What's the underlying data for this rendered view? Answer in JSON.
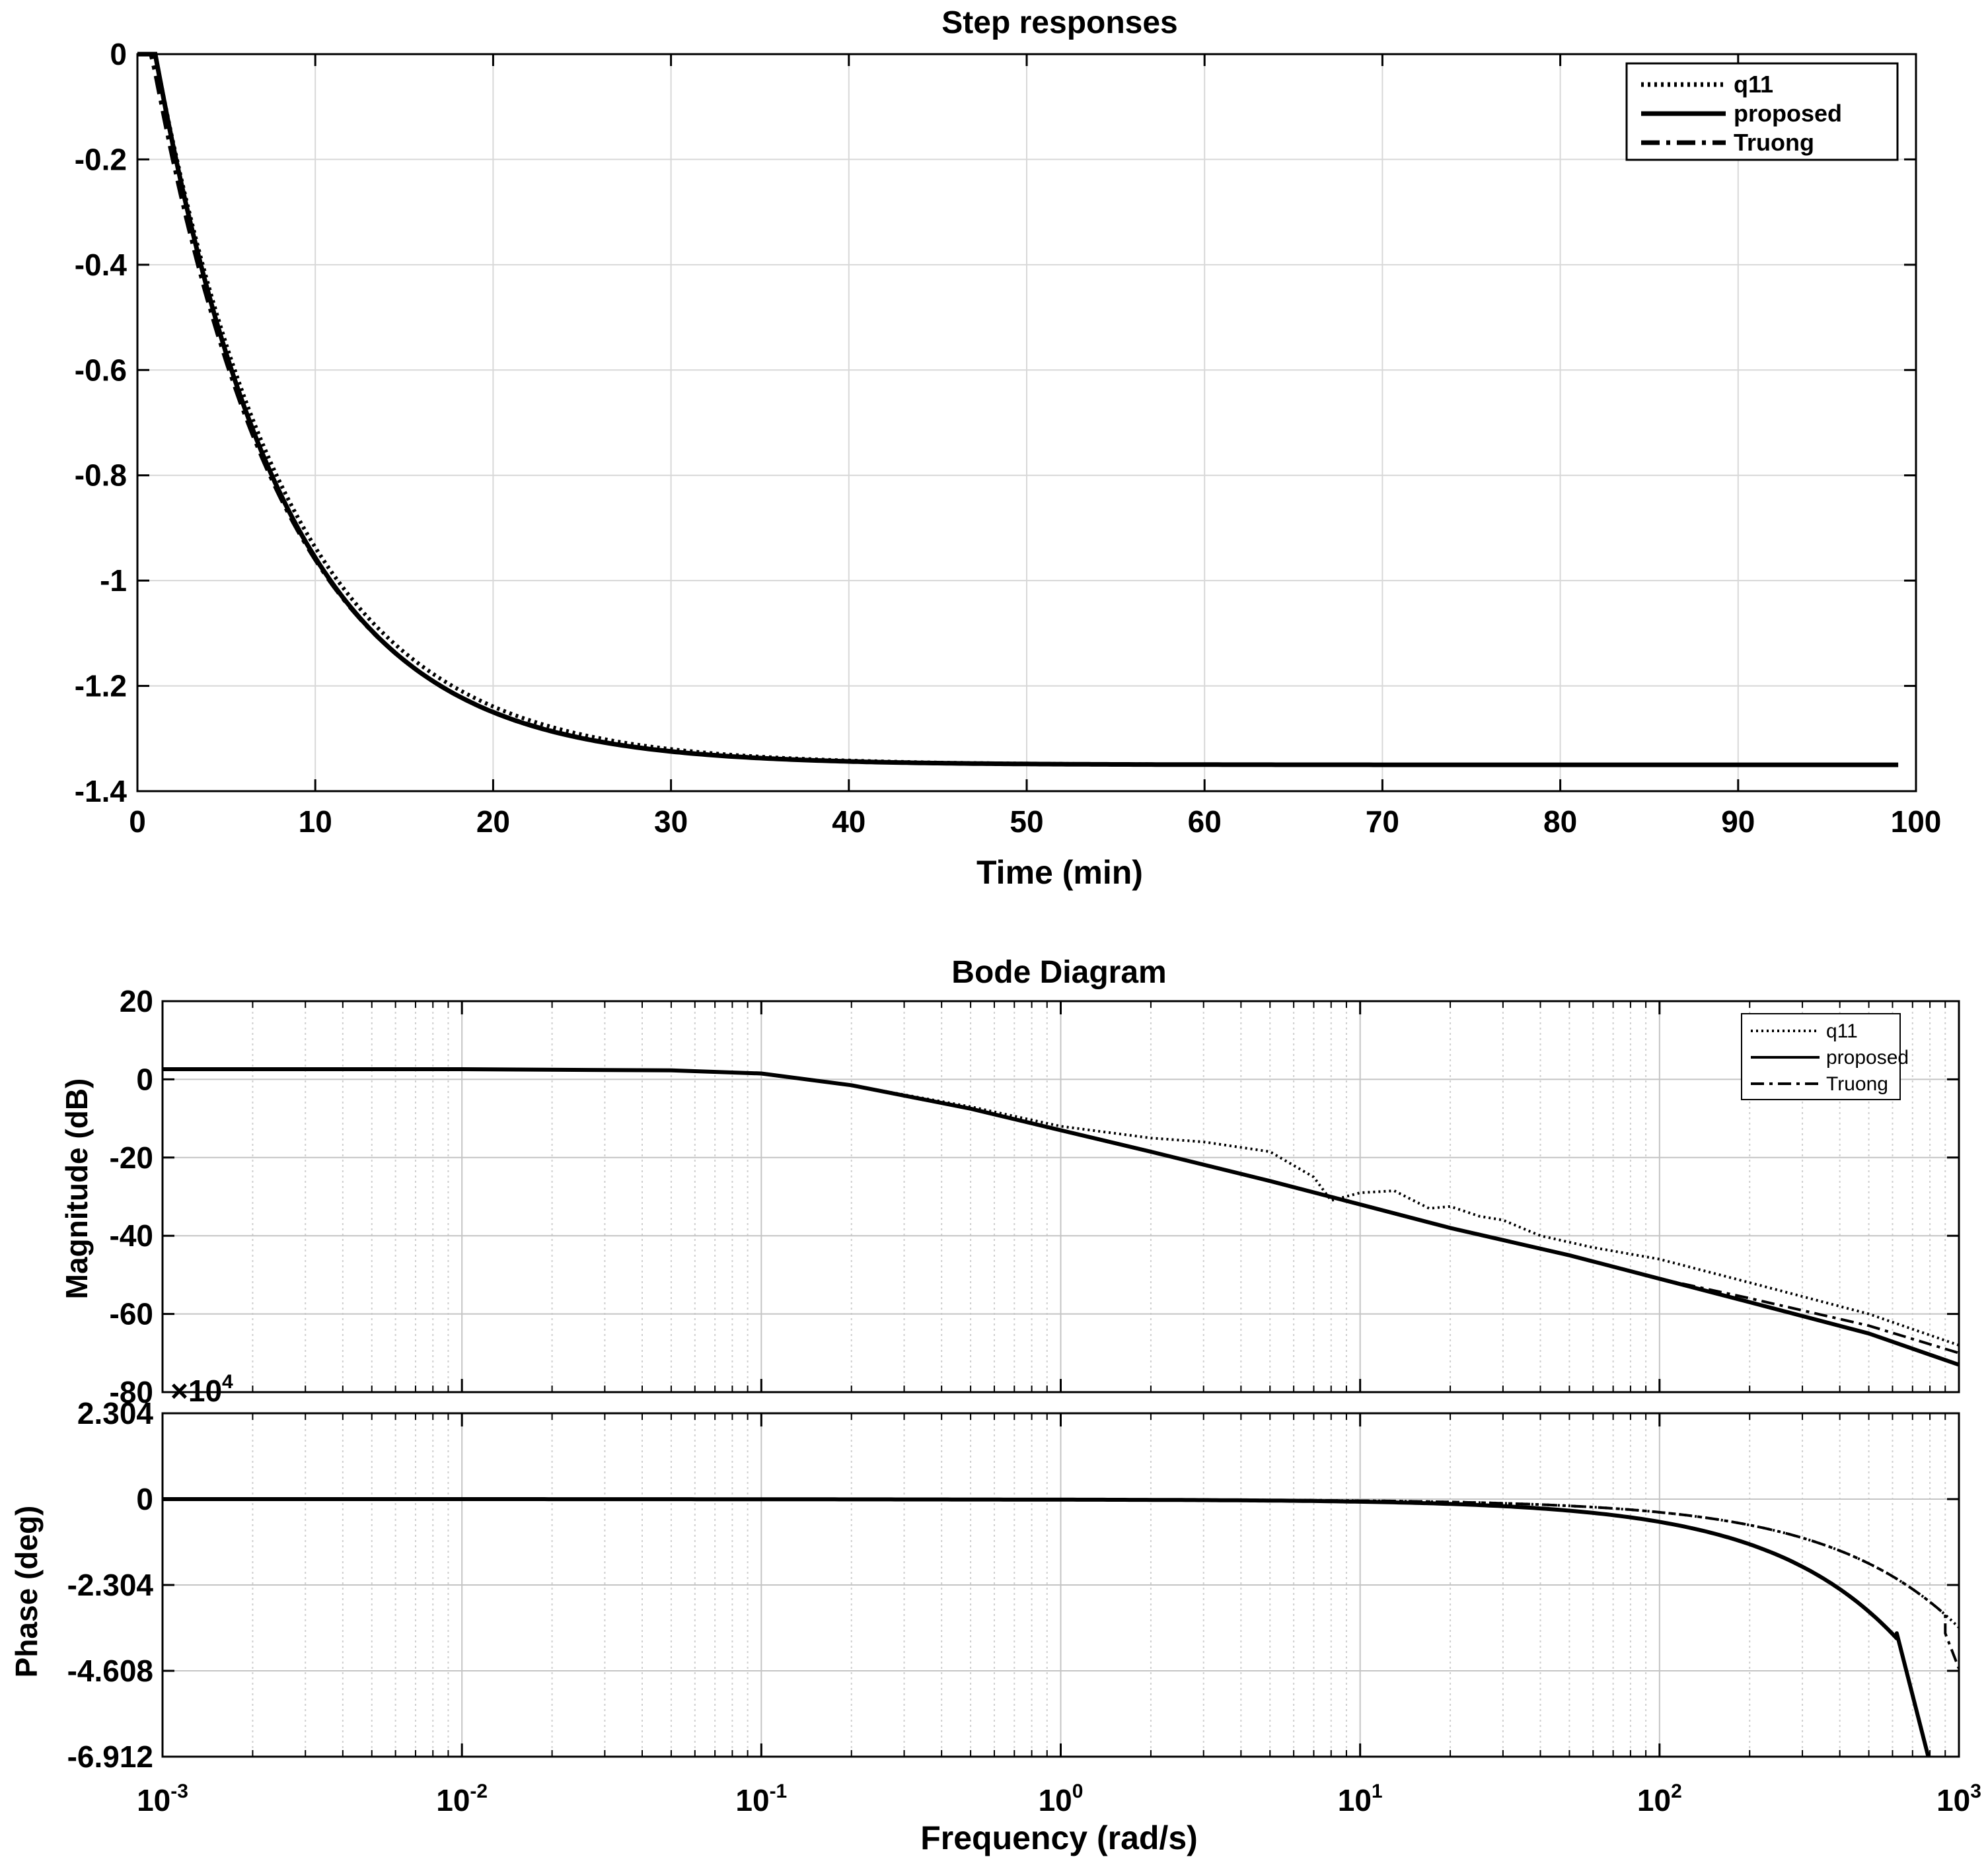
{
  "chart_data": [
    {
      "type": "line",
      "title": "Step responses",
      "xlabel": "Time (min)",
      "ylabel": "",
      "xlim": [
        0,
        100
      ],
      "ylim": [
        -1.4,
        0
      ],
      "xticks": [
        0,
        10,
        20,
        30,
        40,
        50,
        60,
        70,
        80,
        90,
        100
      ],
      "xtick_labels": [
        "0",
        "10",
        "20",
        "30",
        "40",
        "50",
        "60",
        "70",
        "80",
        "90",
        "100"
      ],
      "yticks": [
        0,
        -0.2,
        -0.4,
        -0.6,
        -0.8,
        -1,
        -1.2,
        -1.4
      ],
      "ytick_labels": [
        "0",
        "-0.2",
        "-0.4",
        "-0.6",
        "-0.8",
        "-1",
        "-1.2",
        "-1.4"
      ],
      "grid": true,
      "legend_position": "top-right",
      "legend": [
        "q11",
        "proposed",
        "Truong"
      ],
      "series": [
        {
          "name": "q11",
          "style": "dotted",
          "dead_time": 1,
          "gain": -1.35,
          "tau": 7.6,
          "x_end": 99
        },
        {
          "name": "proposed",
          "style": "solid",
          "dead_time": 1,
          "gain": -1.35,
          "tau": 7.3,
          "x_end": 99
        },
        {
          "name": "Truong",
          "style": "dashdot",
          "dead_time": 0.8,
          "gain": -1.35,
          "tau": 7.4,
          "x_end": 99
        }
      ]
    },
    {
      "type": "line",
      "title": "Bode Diagram",
      "panel": "magnitude",
      "xlabel": "",
      "ylabel": "Magnitude (dB)",
      "xscale": "log",
      "xlim": [
        0.001,
        1000
      ],
      "ylim": [
        -80,
        20
      ],
      "yticks": [
        20,
        0,
        -20,
        -40,
        -60,
        -80
      ],
      "ytick_labels": [
        "20",
        "0",
        "-20",
        "-40",
        "-60",
        "-80"
      ],
      "grid": true,
      "legend_position": "top-right",
      "legend": [
        "q11",
        "proposed",
        "Truong"
      ],
      "series": [
        {
          "name": "q11",
          "style": "dotted",
          "x": [
            0.001,
            0.01,
            0.05,
            0.1,
            0.2,
            0.5,
            1,
            2,
            3,
            5,
            7,
            8,
            10,
            13,
            17,
            20,
            25,
            30,
            40,
            60,
            100,
            200,
            500,
            1000
          ],
          "y": [
            2.6,
            2.6,
            2.3,
            1.5,
            -1.5,
            -7,
            -12,
            -15,
            -16,
            -18.5,
            -25,
            -31,
            -29,
            -28.5,
            -33,
            -32.5,
            -35,
            -36,
            -40,
            -43,
            -46,
            -52,
            -60,
            -68
          ]
        },
        {
          "name": "proposed",
          "style": "solid",
          "x": [
            0.001,
            0.01,
            0.05,
            0.1,
            0.2,
            0.5,
            1,
            2,
            5,
            10,
            20,
            50,
            100,
            200,
            500,
            1000
          ],
          "y": [
            2.6,
            2.6,
            2.3,
            1.5,
            -1.5,
            -7.5,
            -13,
            -18.5,
            -26,
            -32,
            -38,
            -45,
            -51,
            -57,
            -65,
            -73
          ]
        },
        {
          "name": "Truong",
          "style": "dashdot",
          "x": [
            0.001,
            0.01,
            0.05,
            0.1,
            0.2,
            0.5,
            1,
            2,
            5,
            10,
            20,
            50,
            100,
            200,
            500,
            1000
          ],
          "y": [
            2.6,
            2.6,
            2.3,
            1.5,
            -1.5,
            -7.5,
            -13,
            -18.5,
            -26,
            -32,
            -38,
            -45,
            -51,
            -56,
            -63,
            -70
          ]
        }
      ]
    },
    {
      "type": "line",
      "panel": "phase",
      "xlabel": "Frequency  (rad/s)",
      "ylabel": "Phase (deg)",
      "xscale": "log",
      "xlim": [
        0.001,
        1000
      ],
      "xticks": [
        0.001,
        0.01,
        0.1,
        1,
        10,
        100,
        1000
      ],
      "xtick_labels": [
        {
          "base": "10",
          "exp": "-3"
        },
        {
          "base": "10",
          "exp": "-2"
        },
        {
          "base": "10",
          "exp": "-1"
        },
        {
          "base": "10",
          "exp": "0"
        },
        {
          "base": "10",
          "exp": "1"
        },
        {
          "base": "10",
          "exp": "2"
        },
        {
          "base": "10",
          "exp": "3"
        }
      ],
      "ylim": [
        -6.912,
        2.304
      ],
      "y_multiplier": {
        "base": "×10",
        "exp": "4"
      },
      "yticks": [
        2.304,
        0,
        -2.304,
        -4.608,
        -6.912
      ],
      "ytick_labels": [
        "2.304",
        "0",
        "-2.304",
        "-4.608",
        "-6.912"
      ],
      "grid": true,
      "series": [
        {
          "name": "q11",
          "style": "dotted",
          "delay": 0.6,
          "x_end": 1000
        },
        {
          "name": "proposed",
          "style": "solid",
          "delay": 1.05,
          "x_end": 620,
          "tail": {
            "x": [
              620,
              790
            ],
            "y": [
              -3.6,
              -6.912
            ]
          }
        },
        {
          "name": "Truong",
          "style": "dashdot",
          "delay": 0.6,
          "x_end": 900,
          "tail": {
            "x": [
              900,
              1000
            ],
            "y": [
              -3.6,
              -4.55
            ]
          }
        }
      ]
    }
  ]
}
